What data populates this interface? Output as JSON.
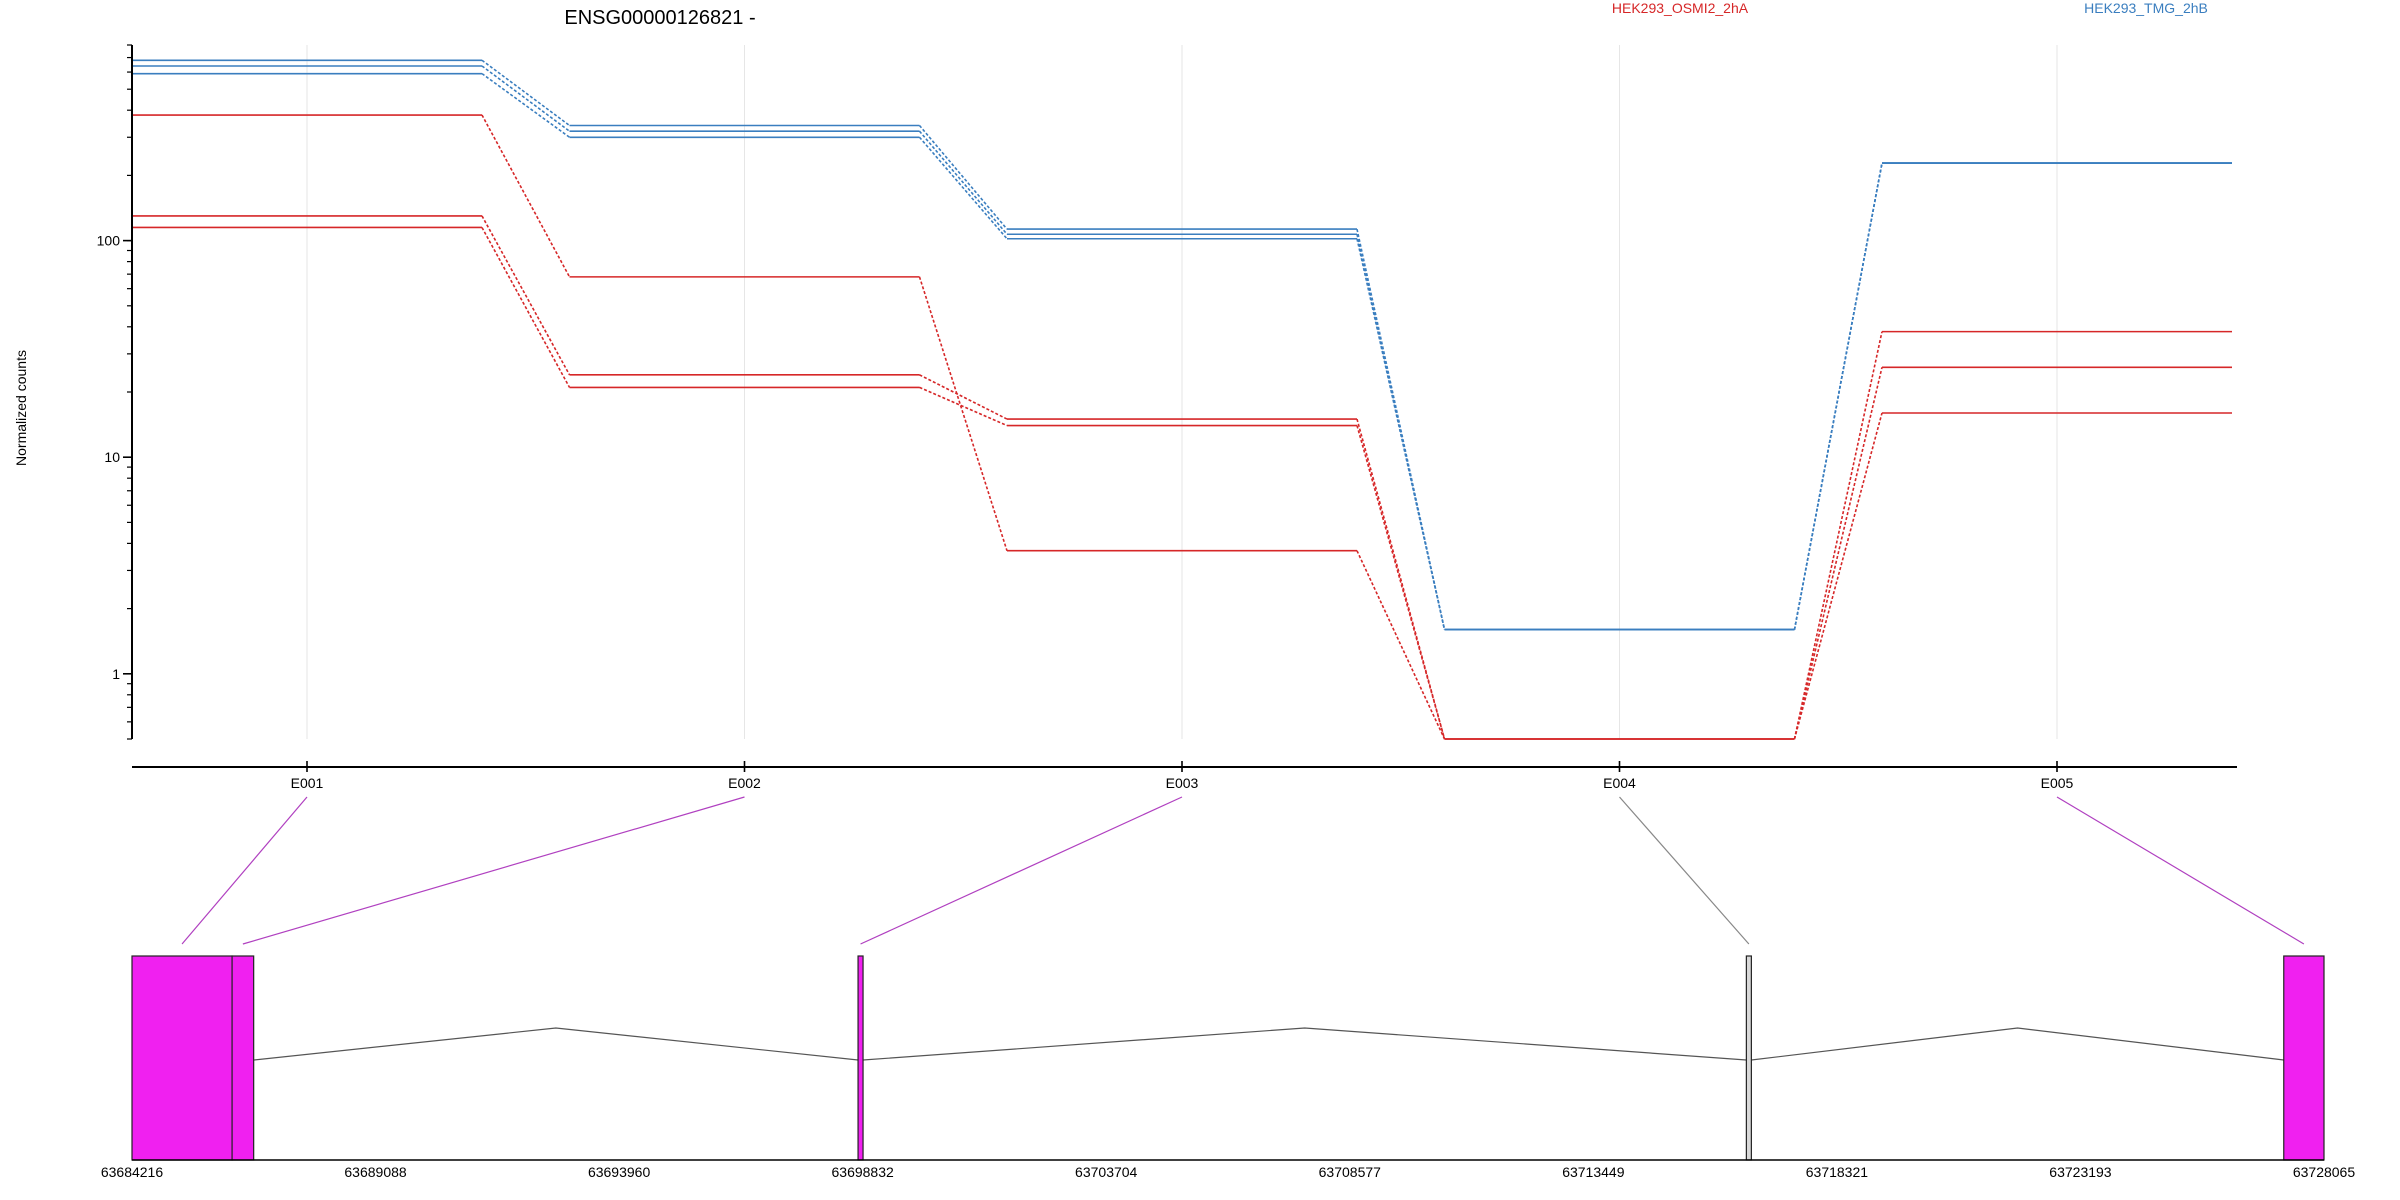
{
  "chart_data": {
    "type": "line",
    "title": "ENSG00000126821 -",
    "ylabel": "Normalized counts",
    "yscale": "log",
    "ylim": [
      0.5,
      800
    ],
    "yticks": [
      1,
      10,
      100
    ],
    "ytick_labels": [
      "1",
      "10",
      "100"
    ],
    "categories": [
      "E001",
      "E002",
      "E003",
      "E004",
      "E005"
    ],
    "grid": true,
    "legend_position": "top",
    "legend": [
      {
        "name": "HEK293_OSMI2_2hA",
        "color": "#d62728"
      },
      {
        "name": "HEK293_TMG_2hB",
        "color": "#3a7ebf"
      }
    ],
    "series": [
      {
        "group": "HEK293_OSMI2_2hA",
        "color": "#d62728",
        "values": [
          380,
          68,
          3.7,
          0.5,
          38
        ]
      },
      {
        "group": "HEK293_OSMI2_2hA",
        "color": "#d62728",
        "values": [
          130,
          24,
          15,
          0.5,
          26
        ]
      },
      {
        "group": "HEK293_OSMI2_2hA",
        "color": "#d62728",
        "values": [
          115,
          21,
          14,
          0.5,
          16
        ]
      },
      {
        "group": "HEK293_TMG_2hB",
        "color": "#3a7ebf",
        "values": [
          680,
          340,
          113,
          1.6,
          228
        ]
      },
      {
        "group": "HEK293_TMG_2hB",
        "color": "#3a7ebf",
        "values": [
          640,
          320,
          107,
          1.6,
          228
        ]
      },
      {
        "group": "HEK293_TMG_2hB",
        "color": "#3a7ebf",
        "values": [
          590,
          300,
          102,
          1.6,
          228
        ]
      }
    ],
    "gene_model": {
      "xlim": [
        63684216,
        63728065
      ],
      "xticks": [
        63684216,
        63689088,
        63693960,
        63698832,
        63703704,
        63708577,
        63713449,
        63718321,
        63723193,
        63728065
      ],
      "xtick_labels": [
        "63684216",
        "63689088",
        "63693960",
        "63698832",
        "63703704",
        "63708577",
        "63713449",
        "63718321",
        "63723193",
        "63728065"
      ],
      "exons": [
        {
          "id": "E001",
          "start": 63684216,
          "end": 63686218,
          "color": "#f020f0"
        },
        {
          "id": "E002",
          "start": 63686218,
          "end": 63686650,
          "color": "#f020f0"
        },
        {
          "id": "E003",
          "start": 63698740,
          "end": 63698840,
          "color": "#f020f0"
        },
        {
          "id": "E004",
          "start": 63716510,
          "end": 63716610,
          "color": "#d9d9d9"
        },
        {
          "id": "E005",
          "start": 63727260,
          "end": 63728065,
          "color": "#f020f0"
        }
      ],
      "introns": [
        [
          63686650,
          63698740
        ],
        [
          63698840,
          63716510
        ],
        [
          63716610,
          63727260
        ]
      ],
      "connectors": [
        {
          "exon": "E001",
          "color": "#b040c0"
        },
        {
          "exon": "E002",
          "color": "#b040c0"
        },
        {
          "exon": "E003",
          "color": "#b040c0"
        },
        {
          "exon": "E004",
          "color": "#888888"
        },
        {
          "exon": "E005",
          "color": "#b040c0"
        }
      ]
    }
  }
}
